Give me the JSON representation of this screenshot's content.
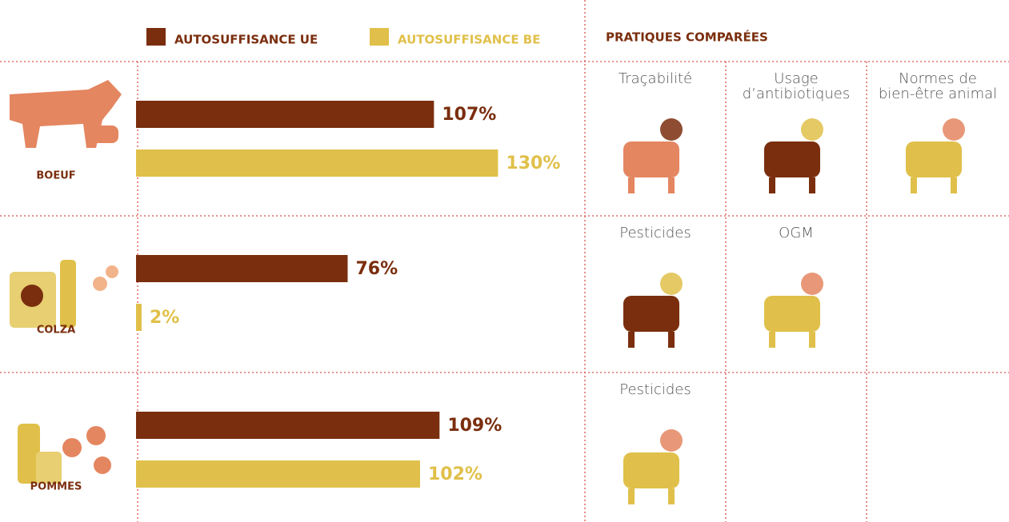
{
  "chart_data": {
    "type": "bar",
    "orientation": "horizontal",
    "categories": [
      "BOEUF",
      "COLZA",
      "POMMES"
    ],
    "series": [
      {
        "name": "AUTOSUFFISANCE UE",
        "color": "#7a2e0e",
        "values": [
          107,
          76,
          109
        ],
        "value_labels": [
          "107%",
          "76%",
          "109%"
        ]
      },
      {
        "name": "AUTOSUFFISANCE BE",
        "color": "#e0c04a",
        "values": [
          130,
          2,
          102
        ],
        "value_labels": [
          "130%",
          "2%",
          "102%"
        ]
      }
    ]
  },
  "practices": {
    "title": "PRATIQUES COMPARÉES",
    "rows": [
      [
        "Traçabilité",
        "Usage\nd’antibiotiques",
        "Normes de\nbien-être animal"
      ],
      [
        "Pesticides",
        "OGM"
      ],
      [
        "Pesticides"
      ]
    ]
  }
}
